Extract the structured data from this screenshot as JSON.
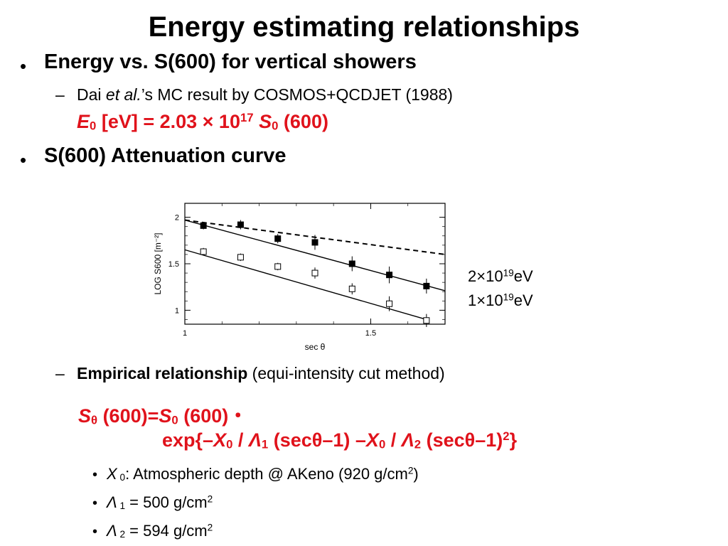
{
  "slide": {
    "title": "Energy estimating relationships",
    "bullet1": "Energy vs. S(600) for vertical showers",
    "sub1": {
      "prefix": "Dai ",
      "etal": "et al.",
      "suffix": "’s MC result by COSMOS+QCDJET (1988)"
    },
    "formula1": {
      "E": "E",
      "E_sub": "0",
      "mid": " [eV] = 2.03 × 10",
      "exp": "17",
      "S": " S",
      "S_sub": "0",
      "end": " (600)"
    },
    "bullet2": "S(600) Attenuation curve",
    "legend": [
      {
        "base": "2×10",
        "exp": "19",
        "unit": "eV"
      },
      {
        "base": "1×10",
        "exp": "19",
        "unit": "eV"
      }
    ],
    "sub2": {
      "bold": "Empirical relationship",
      "rest": " (equi-intensity cut method)"
    },
    "formula2": {
      "line1_S": "S",
      "line1_Ssub": "θ",
      "line1_mid": " (600)=",
      "line1_S0": "S",
      "line1_S0sub": "0",
      "line1_end": " (600)・",
      "l2_a": "exp{–",
      "l2_X": "X",
      "l2_Xsub": "0",
      "l2_slash": " / ",
      "l2_L": "Λ",
      "l2_Lsub": "1",
      "l2_b": " (secθ–1) –",
      "l2_X2": "X",
      "l2_X2sub": "0",
      "l2_slash2": " / ",
      "l2_L2": "Λ",
      "l2_L2sub": "2",
      "l2_c": " (secθ–1)",
      "l2_sup": "2",
      "l2_d": "}"
    },
    "items": [
      {
        "sym": "X",
        "sub": " 0",
        "text": ": Atmospheric depth @ AKeno (920 g/cm",
        "sup": "2",
        "tail": ")"
      },
      {
        "sym": "Λ",
        "sub": " 1",
        "text": " = 500 g/cm",
        "sup": "2",
        "tail": ""
      },
      {
        "sym": "Λ",
        "sub": " 2",
        "text": "  = 594 g/cm",
        "sup": "2",
        "tail": ""
      }
    ],
    "bullet_glyph": "•",
    "dash_glyph": "–",
    "small_bullet_glyph": "•"
  },
  "chart_data": {
    "type": "scatter",
    "xlabel": "sec θ",
    "ylabel": "LOG S600 [m⁻²]",
    "xlim": [
      1.0,
      1.7
    ],
    "ylim": [
      0.85,
      2.15
    ],
    "x_ticks": [
      "1",
      "1.5"
    ],
    "y_ticks": [
      "1",
      "1.5",
      "2"
    ],
    "series": [
      {
        "marker": "filled-square",
        "x": [
          1.05,
          1.15,
          1.25,
          1.35,
          1.45,
          1.55,
          1.65
        ],
        "y": [
          1.91,
          1.92,
          1.77,
          1.73,
          1.5,
          1.38,
          1.26
        ],
        "err": [
          0.04,
          0.05,
          0.05,
          0.08,
          0.08,
          0.09,
          0.08
        ],
        "fit": {
          "x": [
            1.0,
            1.7
          ],
          "y": [
            1.97,
            1.21
          ]
        },
        "dashed_line": {
          "x": [
            1.0,
            1.7
          ],
          "y": [
            1.97,
            1.6
          ]
        }
      },
      {
        "marker": "open-square",
        "x": [
          1.05,
          1.15,
          1.25,
          1.35,
          1.45,
          1.55,
          1.65
        ],
        "y": [
          1.63,
          1.57,
          1.47,
          1.4,
          1.23,
          1.07,
          0.89
        ],
        "err": [
          0.04,
          0.04,
          0.04,
          0.06,
          0.06,
          0.08,
          0.07
        ],
        "fit": {
          "x": [
            1.0,
            1.65
          ],
          "y": [
            1.65,
            0.9
          ]
        }
      }
    ]
  }
}
